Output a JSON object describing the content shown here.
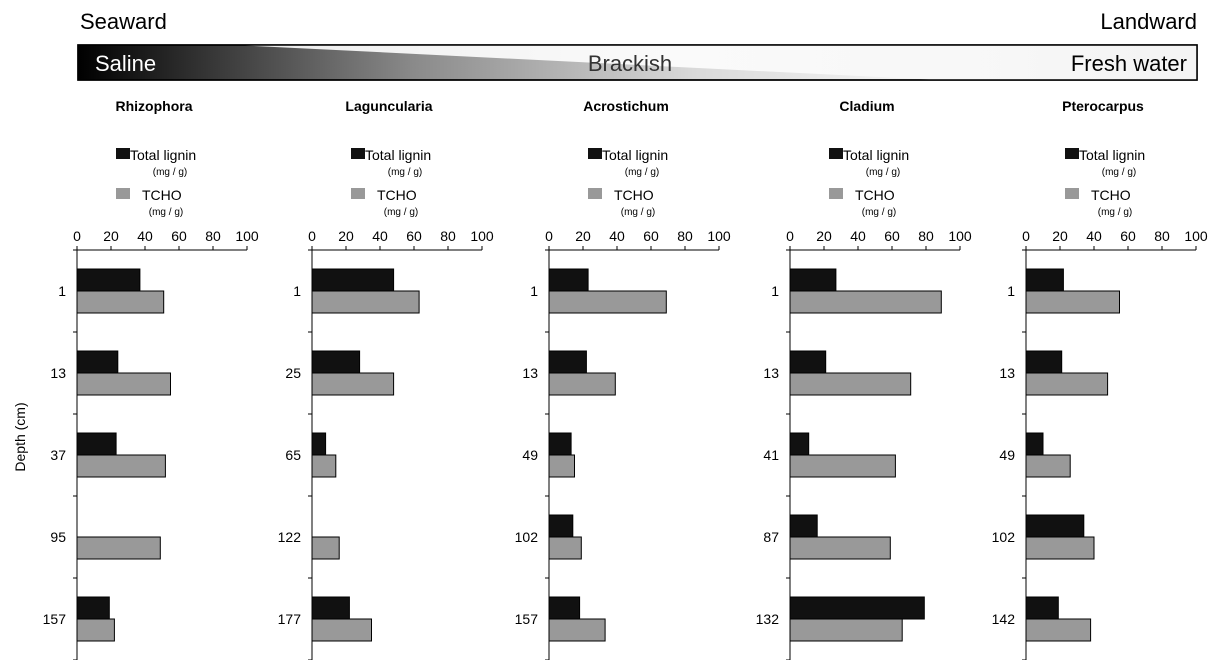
{
  "gradient": {
    "left_label": "Seaward",
    "right_label": "Landward",
    "zones": [
      "Saline",
      "Brackish",
      "Fresh water"
    ]
  },
  "y_axis_label": "Depth (cm)",
  "legend": {
    "lignin_label": "Total lignin",
    "tcho_label": "TCHO",
    "unit": "(mg / g)"
  },
  "colors": {
    "lignin": "#111111",
    "tcho": "#999999"
  },
  "chart_data": [
    {
      "type": "bar",
      "orientation": "horizontal",
      "title": "Rhizophora",
      "categories": [
        "1",
        "13",
        "37",
        "95",
        "157"
      ],
      "xlim": [
        0,
        100
      ],
      "xticks": [
        "0",
        "20",
        "40",
        "60",
        "80",
        "100"
      ],
      "series": [
        {
          "name": "Total lignin (mg / g)",
          "values": [
            37,
            24,
            23,
            0,
            19
          ]
        },
        {
          "name": "TCHO (mg / g)",
          "values": [
            51,
            55,
            52,
            49,
            22
          ]
        }
      ]
    },
    {
      "type": "bar",
      "orientation": "horizontal",
      "title": "Laguncularia",
      "categories": [
        "1",
        "25",
        "65",
        "122",
        "177"
      ],
      "xlim": [
        0,
        100
      ],
      "xticks": [
        "0",
        "20",
        "40",
        "60",
        "80",
        "100"
      ],
      "series": [
        {
          "name": "Total lignin (mg / g)",
          "values": [
            48,
            28,
            8,
            0,
            22
          ]
        },
        {
          "name": "TCHO (mg / g)",
          "values": [
            63,
            48,
            14,
            16,
            35
          ]
        }
      ]
    },
    {
      "type": "bar",
      "orientation": "horizontal",
      "title": "Acrostichum",
      "categories": [
        "1",
        "13",
        "49",
        "102",
        "157"
      ],
      "xlim": [
        0,
        100
      ],
      "xticks": [
        "0",
        "20",
        "40",
        "60",
        "80",
        "100"
      ],
      "series": [
        {
          "name": "Total lignin (mg / g)",
          "values": [
            23,
            22,
            13,
            14,
            18
          ]
        },
        {
          "name": "TCHO (mg / g)",
          "values": [
            69,
            39,
            15,
            19,
            33
          ]
        }
      ]
    },
    {
      "type": "bar",
      "orientation": "horizontal",
      "title": "Cladium",
      "categories": [
        "1",
        "13",
        "41",
        "87",
        "132"
      ],
      "xlim": [
        0,
        100
      ],
      "xticks": [
        "0",
        "20",
        "40",
        "60",
        "80",
        "100"
      ],
      "series": [
        {
          "name": "Total lignin (mg / g)",
          "values": [
            27,
            21,
            11,
            16,
            79
          ]
        },
        {
          "name": "TCHO (mg / g)",
          "values": [
            89,
            71,
            62,
            59,
            66
          ]
        }
      ]
    },
    {
      "type": "bar",
      "orientation": "horizontal",
      "title": "Pterocarpus",
      "categories": [
        "1",
        "13",
        "49",
        "102",
        "142"
      ],
      "xlim": [
        0,
        100
      ],
      "xticks": [
        "0",
        "20",
        "40",
        "60",
        "80",
        "100"
      ],
      "series": [
        {
          "name": "Total lignin (mg / g)",
          "values": [
            22,
            21,
            10,
            34,
            19
          ]
        },
        {
          "name": "TCHO (mg / g)",
          "values": [
            55,
            48,
            26,
            40,
            38
          ]
        }
      ]
    }
  ]
}
